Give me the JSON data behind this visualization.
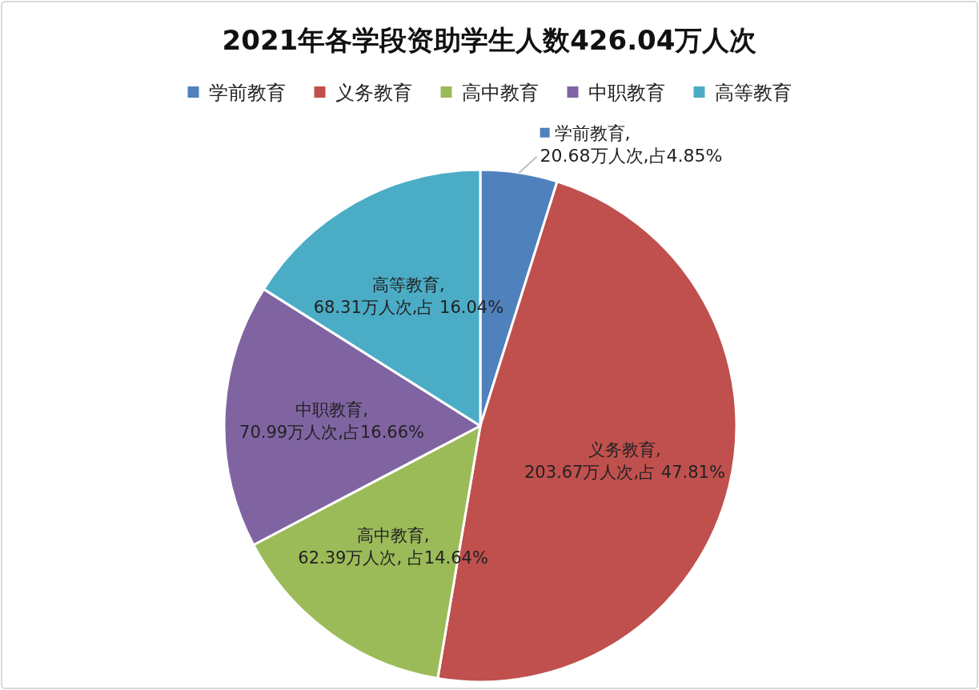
{
  "chart_data": {
    "type": "pie",
    "title": "2021年各学段资助学生人数426.04万人次",
    "categories": [
      "学前教育",
      "义务教育",
      "高中教育",
      "中职教育",
      "高等教育"
    ],
    "values": [
      20.68,
      203.67,
      62.39,
      70.99,
      68.31
    ],
    "colors": [
      "#4f81bd",
      "#c0504d",
      "#9bbb59",
      "#8064a2",
      "#4bacc6"
    ],
    "value_labels": [
      "学前教育,20.68万人次,占4.85%",
      "义务教育,203.67万人次,占 47.81%",
      "高中教育,62.39万人次, 占14.64%",
      "中职教育,70.99万人次,占16.66%",
      "高等教育,68.31万人次,占 16.04%"
    ],
    "legend": "top"
  }
}
